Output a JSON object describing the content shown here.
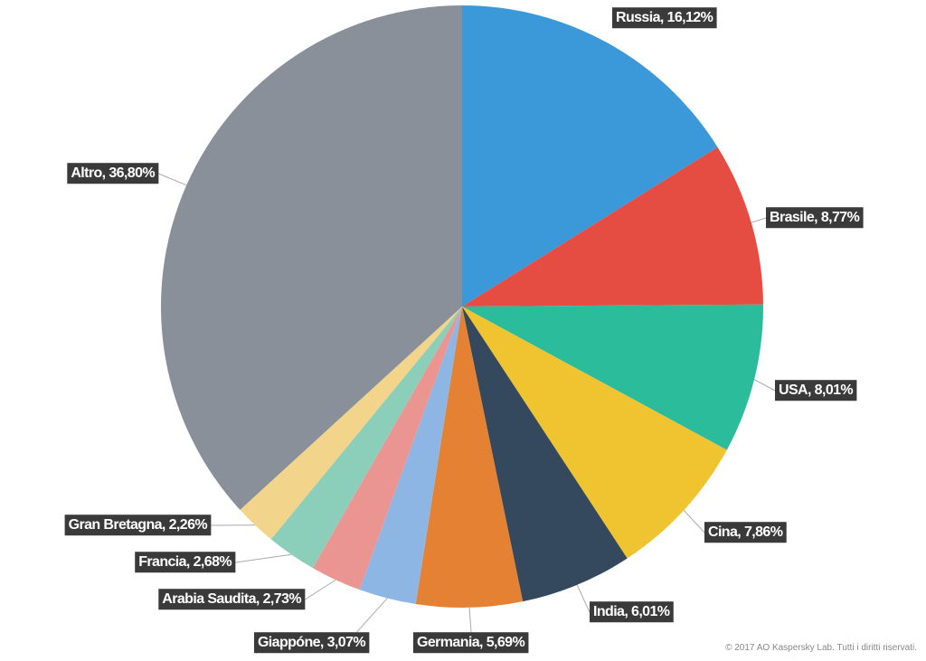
{
  "chart_data": {
    "type": "pie",
    "value_labels": [
      "Russia, 16,12%",
      "Brasile, 8,77%",
      "USA, 8,01%",
      "Cina, 7,86%",
      "India, 6,01%",
      "Germania, 5,69%",
      "Giappóne, 3,07%",
      "Arabia Saudita, 2,73%",
      "Francia, 2,68%",
      "Gran Bretagna, 2,26%",
      "Altro, 36,80%"
    ],
    "values": [
      16.12,
      8.77,
      8.01,
      7.86,
      6.01,
      5.69,
      3.07,
      2.73,
      2.68,
      2.26,
      36.8
    ],
    "colors": [
      "#3b99da",
      "#e54d42",
      "#2bbc9b",
      "#f0c330",
      "#34495e",
      "#e48132",
      "#8db6e4",
      "#ea9592",
      "#8bcfba",
      "#f2d48a",
      "#8a9099"
    ],
    "footnote": "© 2017 AO Kaspersky Lab. Tutti i diritti riservati."
  }
}
